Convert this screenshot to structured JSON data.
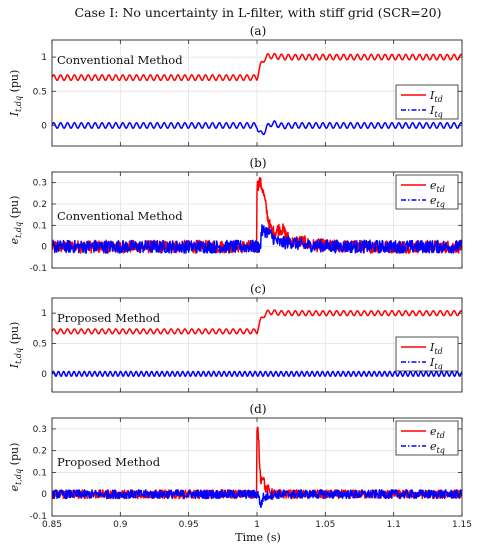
{
  "figure": {
    "title": "Case I: No uncertainty in L-filter, with stiff grid (SCR=20)",
    "xlabel": "Time (s)"
  },
  "colors": {
    "d_axis": "#ff0000",
    "q_axis": "#0000ff"
  },
  "chart_data": [
    {
      "type": "line",
      "subtitle": "(a)",
      "annotation": "Conventional Method",
      "ylabel": "I_{t,dq} (pu)",
      "legend_position": "right",
      "xlim": [
        0.85,
        1.15
      ],
      "ylim": [
        -0.3,
        1.25
      ],
      "xticks": [
        0.85,
        0.9,
        0.95,
        1.0,
        1.05,
        1.1,
        1.15
      ],
      "xtick_labels": [
        "",
        "",
        "",
        "",
        "",
        "",
        ""
      ],
      "yticks": [
        0,
        0.5,
        1
      ],
      "ytick_labels": [
        "0",
        "0.5",
        "1"
      ],
      "series": [
        {
          "name": "I_td",
          "color": "#ff0000",
          "style": "solid",
          "model": "current-d",
          "before": 0.7,
          "after": 1.0,
          "ripple_amplitude": 0.04,
          "ripple_periods": 18,
          "step_time": 1.0,
          "x": [
            0.85,
            1.0,
            1.01,
            1.02,
            1.15
          ],
          "values": [
            0.7,
            0.7,
            0.9,
            1.0,
            1.0
          ]
        },
        {
          "name": "I_tq",
          "color": "#0000ff",
          "style": "dashdot",
          "model": "current-q",
          "before": 0.0,
          "after": 0.0,
          "ripple_amplitude": 0.04,
          "ripple_periods": 18,
          "step_time": 1.0,
          "dip": -0.16,
          "x": [
            0.85,
            1.0,
            1.005,
            1.02,
            1.15
          ],
          "values": [
            0.0,
            0.0,
            -0.16,
            0.0,
            0.0
          ]
        }
      ]
    },
    {
      "type": "line",
      "subtitle": "(b)",
      "annotation": "Conventional Method",
      "ylabel": "e_{t,dq} (pu)",
      "legend_position": "top-right",
      "xlim": [
        0.85,
        1.15
      ],
      "ylim": [
        -0.1,
        0.35
      ],
      "xticks": [
        0.85,
        0.9,
        0.95,
        1.0,
        1.05,
        1.1,
        1.15
      ],
      "xtick_labels": [
        "",
        "",
        "",
        "",
        "",
        "",
        ""
      ],
      "yticks": [
        -0.1,
        0,
        0.1,
        0.2,
        0.3
      ],
      "ytick_labels": [
        "-0.1",
        "0",
        "0.1",
        "0.2",
        "0.3"
      ],
      "series": [
        {
          "name": "e_td",
          "color": "#ff0000",
          "style": "solid",
          "model": "error",
          "noise_amplitude": 0.03,
          "spike_time": 1.0,
          "spike_peak": 0.28,
          "decay": 0.012,
          "x": [
            0.85,
            1.0,
            1.001,
            1.02,
            1.04,
            1.15
          ],
          "values": [
            0.0,
            0.0,
            0.28,
            0.08,
            0.0,
            0.0
          ]
        },
        {
          "name": "e_tq",
          "color": "#0000ff",
          "style": "dashdot",
          "model": "error",
          "noise_amplitude": 0.03,
          "spike_time": 1.003,
          "spike_peak": 0.07,
          "decay": 0.015,
          "x": [
            0.85,
            1.0,
            1.003,
            1.02,
            1.04,
            1.15
          ],
          "values": [
            0.0,
            0.0,
            0.07,
            0.04,
            0.0,
            0.0
          ]
        }
      ]
    },
    {
      "type": "line",
      "subtitle": "(c)",
      "annotation": "Proposed Method",
      "ylabel": "I_{t,dq} (pu)",
      "legend_position": "right",
      "xlim": [
        0.85,
        1.15
      ],
      "ylim": [
        -0.3,
        1.25
      ],
      "xticks": [
        0.85,
        0.9,
        0.95,
        1.0,
        1.05,
        1.1,
        1.15
      ],
      "xtick_labels": [
        "",
        "",
        "",
        "",
        "",
        "",
        ""
      ],
      "yticks": [
        0,
        0.5,
        1
      ],
      "ytick_labels": [
        "0",
        "0.5",
        "1"
      ],
      "series": [
        {
          "name": "I_td",
          "color": "#ff0000",
          "style": "solid",
          "model": "current-d",
          "before": 0.7,
          "after": 1.0,
          "ripple_amplitude": 0.04,
          "ripple_periods": 18,
          "step_time": 1.0,
          "x": [
            0.85,
            1.0,
            1.005,
            1.015,
            1.15
          ],
          "values": [
            0.7,
            0.7,
            0.95,
            1.0,
            1.0
          ]
        },
        {
          "name": "I_tq",
          "color": "#0000ff",
          "style": "dashdot",
          "model": "current-q",
          "before": 0.0,
          "after": 0.0,
          "ripple_amplitude": 0.04,
          "ripple_periods": 24,
          "step_time": 1.0,
          "dip": 0.0,
          "x": [
            0.85,
            1.15
          ],
          "values": [
            0.0,
            0.0
          ]
        }
      ]
    },
    {
      "type": "line",
      "subtitle": "(d)",
      "annotation": "Proposed Method",
      "ylabel": "e_{t,dq} (pu)",
      "legend_position": "top-right",
      "xlim": [
        0.85,
        1.15
      ],
      "ylim": [
        -0.1,
        0.35
      ],
      "xticks": [
        0.85,
        0.9,
        0.95,
        1.0,
        1.05,
        1.1,
        1.15
      ],
      "xtick_labels": [
        "0.85",
        "0.9",
        "0.95",
        "1",
        "1.05",
        "1.1",
        "1.15"
      ],
      "yticks": [
        -0.1,
        0,
        0.1,
        0.2,
        0.3
      ],
      "ytick_labels": [
        "-0.1",
        "0",
        "0.1",
        "0.2",
        "0.3"
      ],
      "series": [
        {
          "name": "e_td",
          "color": "#ff0000",
          "style": "solid",
          "model": "error",
          "noise_amplitude": 0.02,
          "spike_time": 1.0,
          "spike_peak": 0.28,
          "decay": 0.003,
          "x": [
            0.85,
            1.0,
            1.001,
            1.005,
            1.012,
            1.15
          ],
          "values": [
            0.0,
            0.0,
            0.28,
            0.14,
            0.0,
            0.0
          ]
        },
        {
          "name": "e_tq",
          "color": "#0000ff",
          "style": "dashdot",
          "model": "error",
          "noise_amplitude": 0.02,
          "spike_time": 1.002,
          "spike_peak": -0.05,
          "decay": 0.003,
          "x": [
            0.85,
            1.0,
            1.002,
            1.006,
            1.15
          ],
          "values": [
            0.0,
            0.0,
            -0.05,
            0.0,
            0.0
          ]
        }
      ]
    }
  ]
}
